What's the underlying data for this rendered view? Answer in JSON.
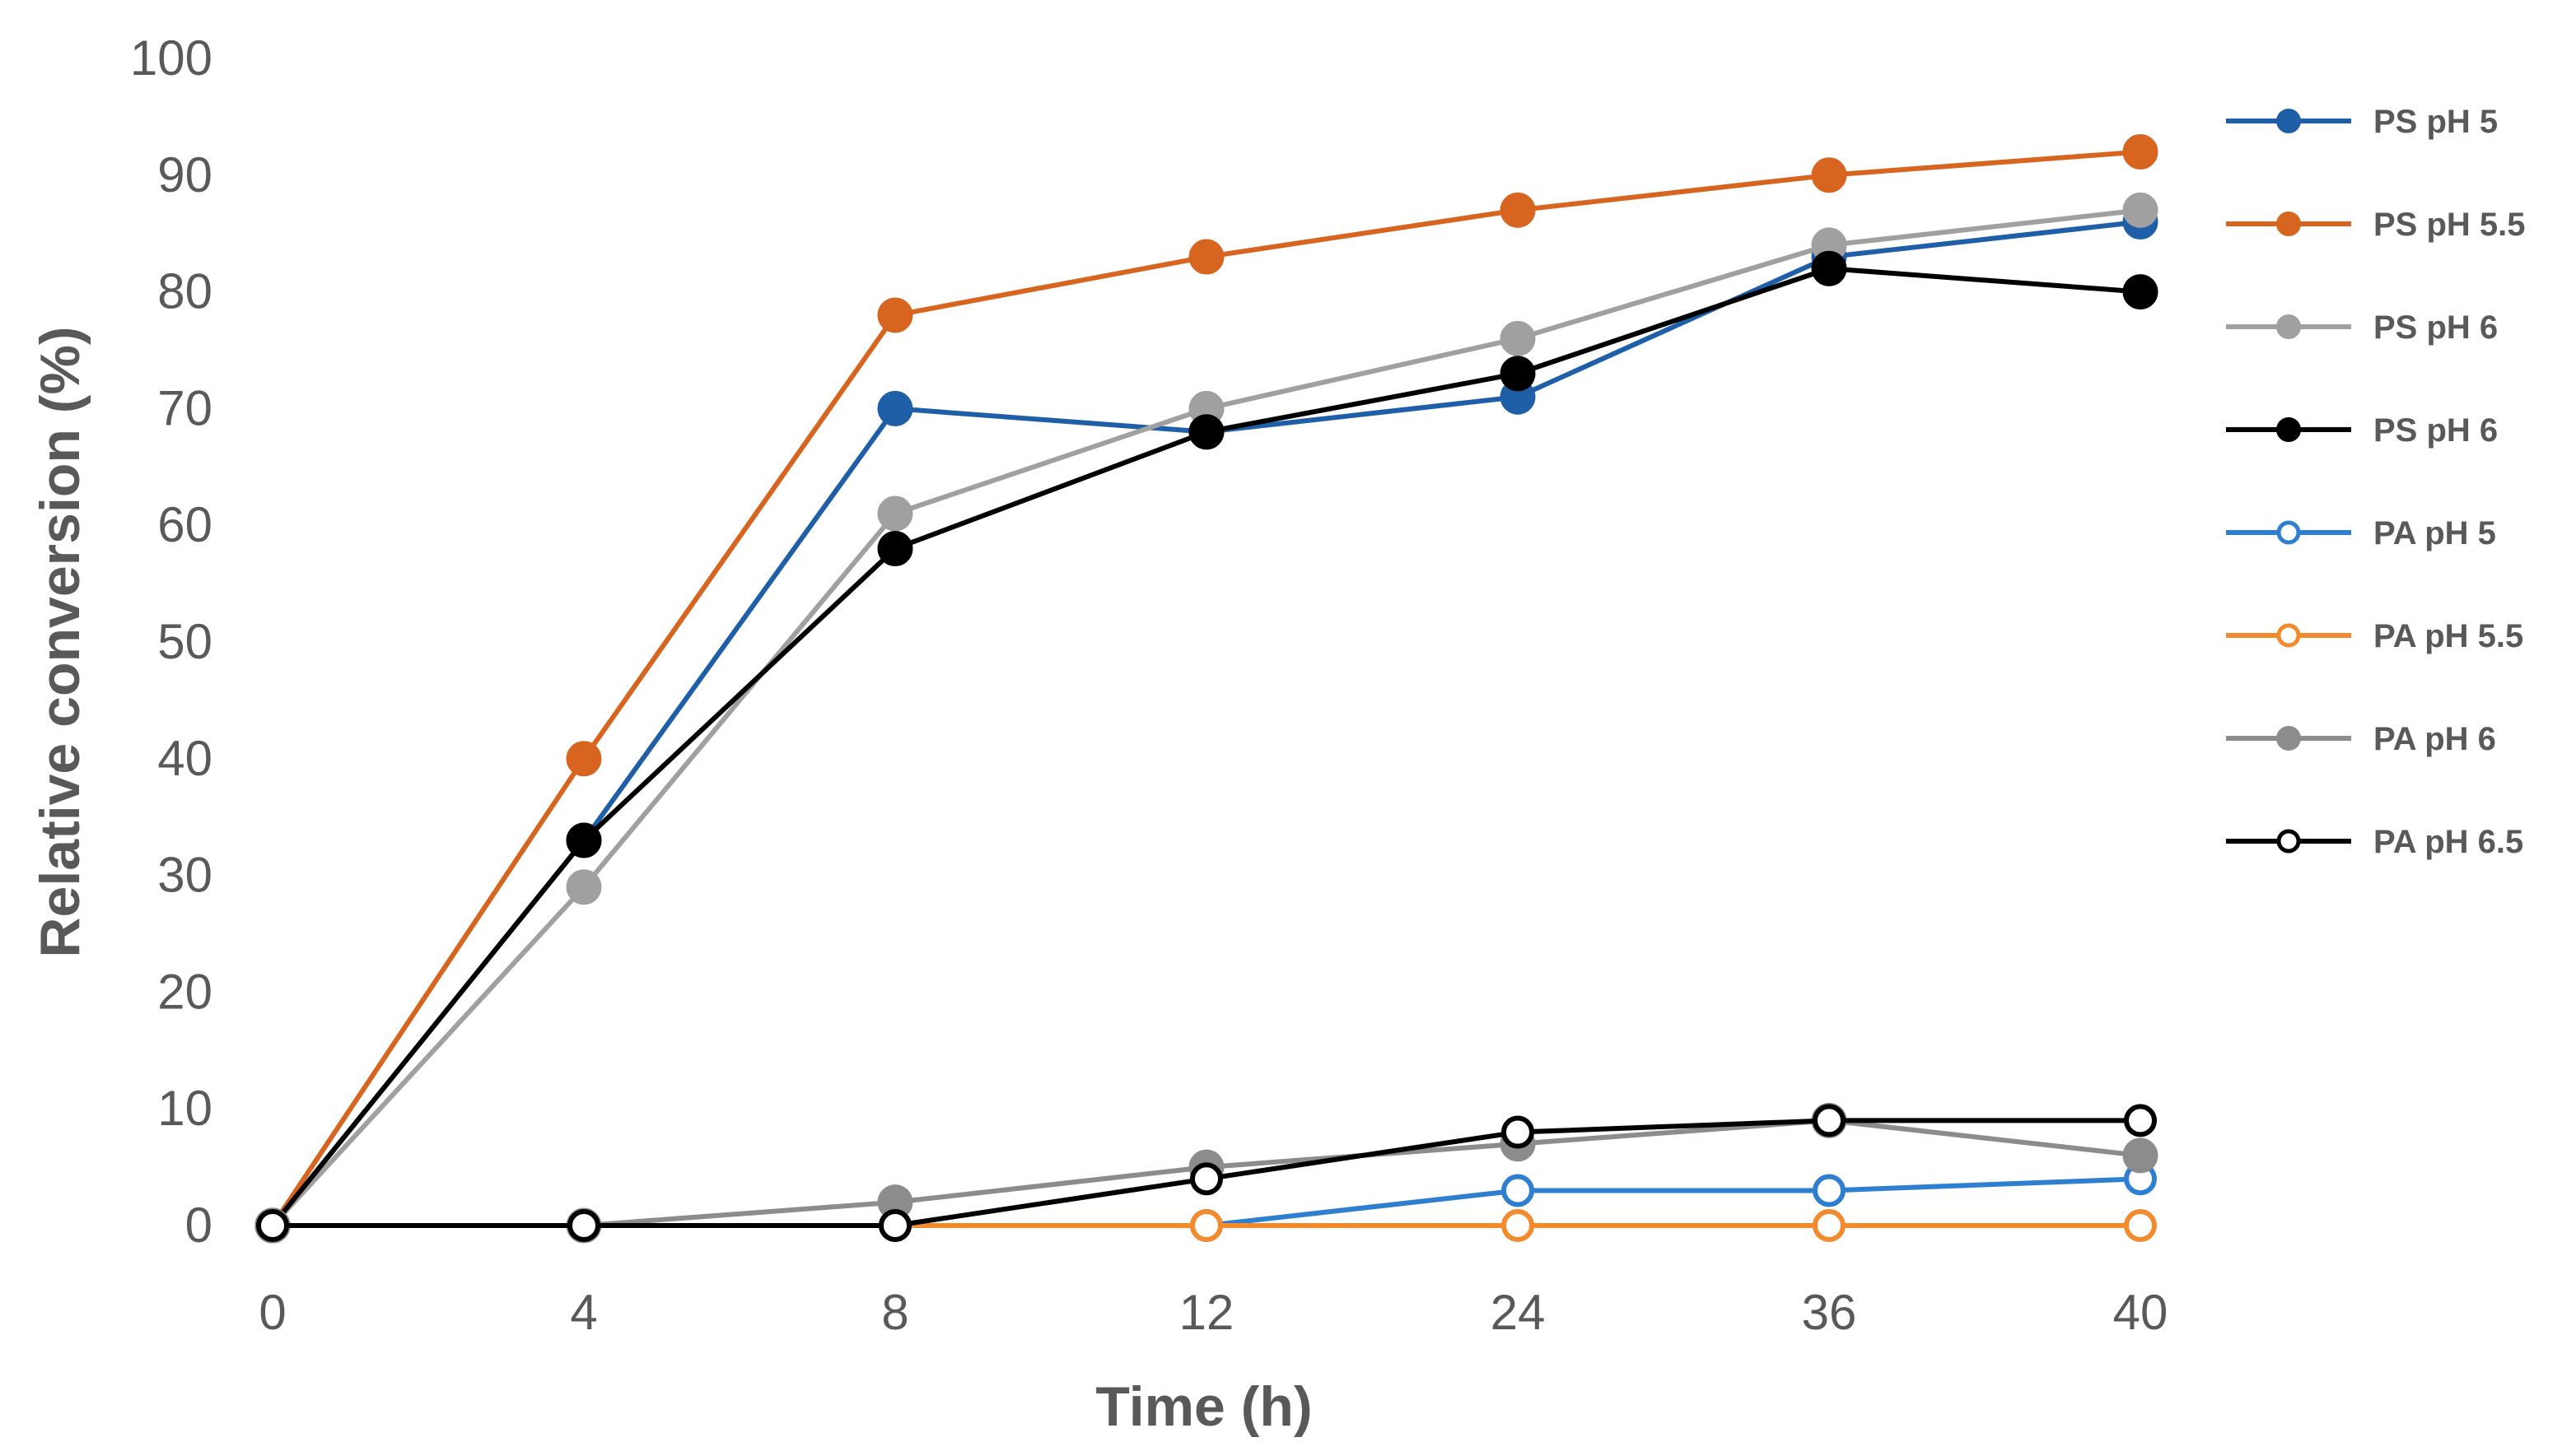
{
  "chart_data": {
    "type": "line",
    "title": "",
    "xlabel": "Time (h)",
    "ylabel": "Relative conversion (%)",
    "categories": [
      "0",
      "4",
      "8",
      "12",
      "24",
      "36",
      "40"
    ],
    "ylim": [
      0,
      100
    ],
    "yticks": [
      "0",
      "10",
      "20",
      "30",
      "40",
      "50",
      "60",
      "70",
      "80",
      "90",
      "100"
    ],
    "grid": false,
    "legend_position": "right",
    "series": [
      {
        "name": "PS pH 5",
        "color": "#1f5fa8",
        "marker": "filled",
        "values": [
          0,
          33,
          70,
          68,
          71,
          83,
          86
        ]
      },
      {
        "name": "PS pH 5.5",
        "color": "#d8651f",
        "marker": "filled",
        "values": [
          0,
          40,
          78,
          83,
          87,
          90,
          92
        ]
      },
      {
        "name": "PS pH 6",
        "color": "#a0a0a0",
        "marker": "filled",
        "values": [
          0,
          29,
          61,
          70,
          76,
          84,
          87
        ]
      },
      {
        "name": "PS pH 6",
        "color": "#000000",
        "marker": "filled",
        "values": [
          0,
          33,
          58,
          68,
          73,
          82,
          80
        ]
      },
      {
        "name": "PA pH 5",
        "color": "#2e7fd0",
        "marker": "hollow",
        "values": [
          0,
          0,
          0,
          0,
          3,
          3,
          4
        ]
      },
      {
        "name": "PA pH 5.5",
        "color": "#f28a2e",
        "marker": "hollow",
        "values": [
          0,
          0,
          0,
          0,
          0,
          0,
          0
        ]
      },
      {
        "name": "PA pH 6",
        "color": "#8c8c8c",
        "marker": "filled",
        "values": [
          0,
          0,
          2,
          5,
          7,
          9,
          6
        ]
      },
      {
        "name": "PA pH 6.5",
        "color": "#000000",
        "marker": "hollow",
        "values": [
          0,
          0,
          0,
          4,
          8,
          9,
          9
        ]
      }
    ]
  }
}
